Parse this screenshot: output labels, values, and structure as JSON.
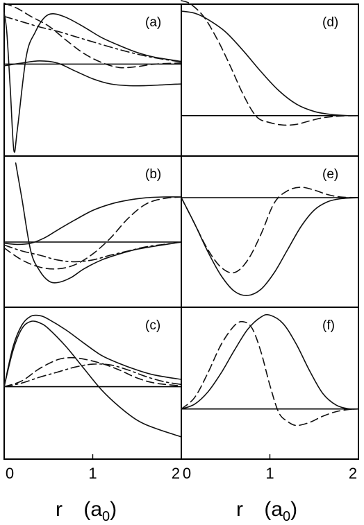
{
  "chart_data": {
    "type": "line",
    "x_range": [
      0,
      2
    ],
    "x_ticks": [
      "0",
      "1",
      "2"
    ],
    "xlabel": {
      "symbol": "r",
      "unit_open": "(a",
      "unit_sub": "0",
      "unit_close": ")"
    },
    "panels": [
      {
        "label": "(a)",
        "column": 0,
        "row": 0,
        "series": [
          {
            "style": "solid",
            "points": [
              [
                0,
                0.97
              ],
              [
                0.03,
                0.6
              ],
              [
                0.07,
                -0.3
              ],
              [
                0.11,
                -1.0
              ],
              [
                0.15,
                -0.75
              ],
              [
                0.25,
                0.15
              ],
              [
                0.35,
                0.6
              ],
              [
                0.45,
                0.87
              ],
              [
                0.55,
                0.95
              ],
              [
                0.7,
                0.88
              ],
              [
                0.9,
                0.7
              ],
              [
                1.1,
                0.5
              ],
              [
                1.3,
                0.35
              ],
              [
                1.5,
                0.22
              ],
              [
                1.7,
                0.13
              ],
              [
                2.0,
                0.05
              ]
            ]
          },
          {
            "style": "solid",
            "points": [
              [
                0,
                -0.02
              ],
              [
                0.2,
                0.02
              ],
              [
                0.4,
                0.06
              ],
              [
                0.6,
                0.02
              ],
              [
                0.8,
                -0.08
              ],
              [
                1.0,
                -0.17
              ],
              [
                1.2,
                -0.23
              ],
              [
                1.4,
                -0.25
              ],
              [
                1.6,
                -0.25
              ],
              [
                1.8,
                -0.24
              ],
              [
                2.0,
                -0.23
              ]
            ]
          },
          {
            "style": "dash",
            "points": [
              [
                0,
                1.15
              ],
              [
                0.15,
                1.05
              ],
              [
                0.3,
                0.9
              ],
              [
                0.5,
                0.72
              ],
              [
                0.7,
                0.45
              ],
              [
                0.9,
                0.2
              ],
              [
                1.1,
                0.03
              ],
              [
                1.3,
                -0.04
              ],
              [
                1.5,
                -0.03
              ],
              [
                1.7,
                0.0
              ],
              [
                2.0,
                0.02
              ]
            ]
          },
          {
            "style": "dashdot",
            "points": [
              [
                0,
                0.9
              ],
              [
                0.2,
                0.8
              ],
              [
                0.4,
                0.7
              ],
              [
                0.6,
                0.62
              ],
              [
                0.8,
                0.52
              ],
              [
                1.0,
                0.42
              ],
              [
                1.2,
                0.32
              ],
              [
                1.4,
                0.23
              ],
              [
                1.6,
                0.15
              ],
              [
                1.8,
                0.09
              ],
              [
                2.0,
                0.04
              ]
            ]
          }
        ]
      },
      {
        "label": "(b)",
        "column": 0,
        "row": 1,
        "series": [
          {
            "style": "solid",
            "points": [
              [
                0.13,
                1.0
              ],
              [
                0.2,
                0.55
              ],
              [
                0.3,
                -0.15
              ],
              [
                0.4,
                -0.48
              ],
              [
                0.5,
                -0.65
              ],
              [
                0.6,
                -0.68
              ],
              [
                0.75,
                -0.6
              ],
              [
                0.9,
                -0.45
              ],
              [
                1.1,
                -0.3
              ],
              [
                1.3,
                -0.2
              ],
              [
                1.5,
                -0.12
              ],
              [
                1.7,
                -0.07
              ],
              [
                2.0,
                0.0
              ]
            ]
          },
          {
            "style": "solid",
            "points": [
              [
                0,
                -0.02
              ],
              [
                0.15,
                -0.04
              ],
              [
                0.3,
                -0.02
              ],
              [
                0.45,
                0.05
              ],
              [
                0.6,
                0.15
              ],
              [
                0.8,
                0.28
              ],
              [
                1.0,
                0.4
              ],
              [
                1.2,
                0.48
              ],
              [
                1.4,
                0.53
              ],
              [
                1.6,
                0.56
              ],
              [
                1.8,
                0.57
              ],
              [
                2.0,
                0.57
              ]
            ]
          },
          {
            "style": "dash",
            "points": [
              [
                0,
                -0.1
              ],
              [
                0.2,
                -0.3
              ],
              [
                0.4,
                -0.42
              ],
              [
                0.6,
                -0.45
              ],
              [
                0.8,
                -0.38
              ],
              [
                1.0,
                -0.2
              ],
              [
                1.2,
                0.05
              ],
              [
                1.4,
                0.3
              ],
              [
                1.6,
                0.48
              ],
              [
                1.8,
                0.55
              ],
              [
                2.0,
                0.57
              ]
            ]
          },
          {
            "style": "dashdot",
            "points": [
              [
                0,
                -0.05
              ],
              [
                0.2,
                -0.15
              ],
              [
                0.4,
                -0.22
              ],
              [
                0.6,
                -0.3
              ],
              [
                0.8,
                -0.33
              ],
              [
                1.0,
                -0.3
              ],
              [
                1.2,
                -0.22
              ],
              [
                1.4,
                -0.15
              ],
              [
                1.6,
                -0.08
              ],
              [
                1.8,
                -0.04
              ],
              [
                2.0,
                0.0
              ]
            ]
          }
        ]
      },
      {
        "label": "(c)",
        "column": 0,
        "row": 2,
        "series": [
          {
            "style": "solid",
            "points": [
              [
                0,
                0.0
              ],
              [
                0.1,
                0.55
              ],
              [
                0.2,
                0.85
              ],
              [
                0.3,
                0.97
              ],
              [
                0.4,
                0.98
              ],
              [
                0.5,
                0.93
              ],
              [
                0.7,
                0.78
              ],
              [
                0.9,
                0.6
              ],
              [
                1.1,
                0.43
              ],
              [
                1.3,
                0.32
              ],
              [
                1.5,
                0.23
              ],
              [
                1.7,
                0.16
              ],
              [
                2.0,
                0.1
              ]
            ]
          },
          {
            "style": "solid",
            "points": [
              [
                0,
                0.0
              ],
              [
                0.1,
                0.5
              ],
              [
                0.2,
                0.8
              ],
              [
                0.3,
                0.9
              ],
              [
                0.4,
                0.88
              ],
              [
                0.5,
                0.8
              ],
              [
                0.7,
                0.55
              ],
              [
                0.9,
                0.25
              ],
              [
                1.1,
                -0.05
              ],
              [
                1.3,
                -0.3
              ],
              [
                1.5,
                -0.5
              ],
              [
                1.7,
                -0.62
              ],
              [
                2.0,
                -0.75
              ]
            ]
          },
          {
            "style": "dash",
            "points": [
              [
                0,
                0.0
              ],
              [
                0.2,
                0.08
              ],
              [
                0.4,
                0.25
              ],
              [
                0.6,
                0.37
              ],
              [
                0.75,
                0.4
              ],
              [
                0.9,
                0.38
              ],
              [
                1.1,
                0.32
              ],
              [
                1.3,
                0.23
              ],
              [
                1.5,
                0.12
              ],
              [
                1.7,
                0.05
              ],
              [
                2.0,
                0.01
              ]
            ]
          },
          {
            "style": "dashdot",
            "points": [
              [
                0,
                0.0
              ],
              [
                0.2,
                0.05
              ],
              [
                0.4,
                0.13
              ],
              [
                0.6,
                0.2
              ],
              [
                0.8,
                0.27
              ],
              [
                1.0,
                0.31
              ],
              [
                1.2,
                0.3
              ],
              [
                1.4,
                0.23
              ],
              [
                1.6,
                0.14
              ],
              [
                1.8,
                0.07
              ],
              [
                2.0,
                0.03
              ]
            ]
          }
        ]
      },
      {
        "label": "(d)",
        "column": 1,
        "row": 0,
        "series": [
          {
            "style": "solid",
            "points": [
              [
                0,
                1.0
              ],
              [
                0.15,
                0.98
              ],
              [
                0.3,
                0.92
              ],
              [
                0.5,
                0.8
              ],
              [
                0.7,
                0.62
              ],
              [
                0.9,
                0.42
              ],
              [
                1.1,
                0.24
              ],
              [
                1.3,
                0.11
              ],
              [
                1.5,
                0.04
              ],
              [
                1.7,
                0.01
              ],
              [
                1.9,
                0.0
              ],
              [
                2.0,
                0.0
              ]
            ]
          },
          {
            "style": "dash",
            "points": [
              [
                0,
                1.1
              ],
              [
                0.1,
                1.07
              ],
              [
                0.25,
                0.95
              ],
              [
                0.4,
                0.74
              ],
              [
                0.55,
                0.48
              ],
              [
                0.7,
                0.2
              ],
              [
                0.85,
                -0.03
              ],
              [
                1.0,
                -0.2
              ],
              [
                1.15,
                -0.27
              ],
              [
                1.3,
                -0.25
              ],
              [
                1.45,
                -0.15
              ],
              [
                1.6,
                -0.06
              ],
              [
                1.8,
                -0.01
              ],
              [
                2.0,
                0.0
              ]
            ]
          }
        ]
      },
      {
        "label": "(e)",
        "column": 1,
        "row": 1,
        "series": [
          {
            "style": "solid",
            "points": [
              [
                0,
                0.0
              ],
              [
                0.15,
                -0.25
              ],
              [
                0.3,
                -0.52
              ],
              [
                0.45,
                -0.75
              ],
              [
                0.6,
                -0.9
              ],
              [
                0.75,
                -0.94
              ],
              [
                0.9,
                -0.88
              ],
              [
                1.05,
                -0.72
              ],
              [
                1.2,
                -0.5
              ],
              [
                1.35,
                -0.28
              ],
              [
                1.5,
                -0.12
              ],
              [
                1.65,
                -0.04
              ],
              [
                1.8,
                -0.01
              ],
              [
                2.0,
                0.0
              ]
            ]
          },
          {
            "style": "dash",
            "points": [
              [
                0,
                0.0
              ],
              [
                0.15,
                -0.25
              ],
              [
                0.3,
                -0.5
              ],
              [
                0.45,
                -0.67
              ],
              [
                0.6,
                -0.72
              ],
              [
                0.75,
                -0.6
              ],
              [
                0.9,
                -0.35
              ],
              [
                1.05,
                -0.05
              ],
              [
                1.2,
                0.2
              ],
              [
                1.35,
                0.3
              ],
              [
                1.5,
                0.22
              ],
              [
                1.65,
                0.09
              ],
              [
                1.8,
                0.02
              ],
              [
                2.0,
                0.0
              ]
            ]
          }
        ]
      },
      {
        "label": "(f)",
        "column": 1,
        "row": 2,
        "series": [
          {
            "style": "solid",
            "points": [
              [
                0,
                0.0
              ],
              [
                0.15,
                0.05
              ],
              [
                0.3,
                0.18
              ],
              [
                0.45,
                0.38
              ],
              [
                0.6,
                0.62
              ],
              [
                0.75,
                0.84
              ],
              [
                0.9,
                0.97
              ],
              [
                1.0,
                0.99
              ],
              [
                1.15,
                0.9
              ],
              [
                1.3,
                0.68
              ],
              [
                1.45,
                0.4
              ],
              [
                1.6,
                0.16
              ],
              [
                1.75,
                0.04
              ],
              [
                1.9,
                0.0
              ],
              [
                2.0,
                0.0
              ]
            ]
          },
          {
            "style": "dash",
            "points": [
              [
                0,
                0.0
              ],
              [
                0.15,
                0.12
              ],
              [
                0.3,
                0.38
              ],
              [
                0.45,
                0.68
              ],
              [
                0.6,
                0.88
              ],
              [
                0.7,
                0.92
              ],
              [
                0.8,
                0.85
              ],
              [
                0.9,
                0.6
              ],
              [
                1.0,
                0.25
              ],
              [
                1.1,
                -0.08
              ],
              [
                1.2,
                -0.28
              ],
              [
                1.3,
                -0.37
              ],
              [
                1.45,
                -0.3
              ],
              [
                1.6,
                -0.16
              ],
              [
                1.75,
                -0.06
              ],
              [
                1.9,
                -0.01
              ],
              [
                2.0,
                0.0
              ]
            ]
          }
        ]
      }
    ]
  }
}
